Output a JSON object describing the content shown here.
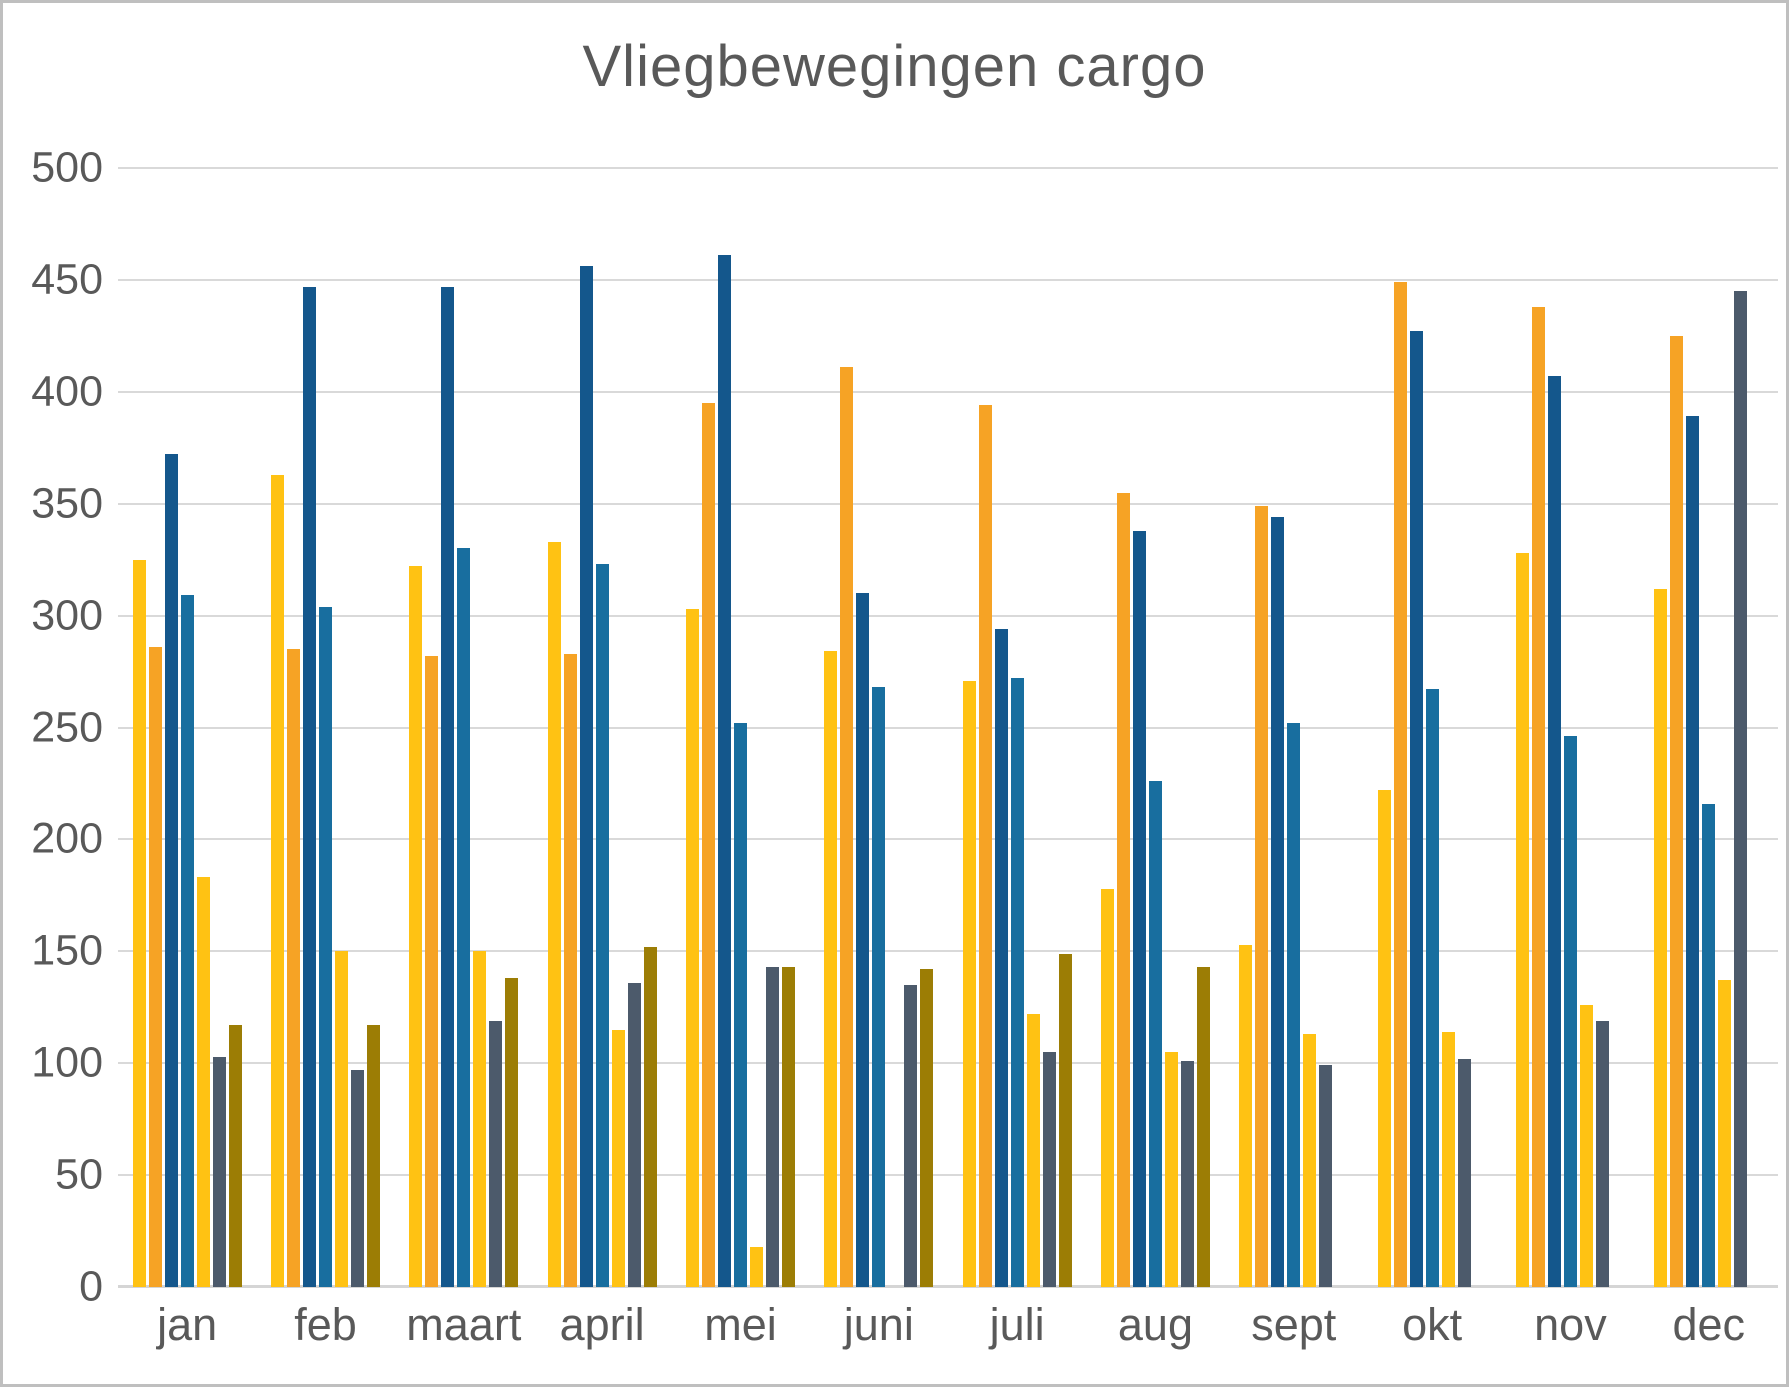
{
  "title": "Vliegbewegingen cargo",
  "theme": {
    "text_color": "#595959",
    "gridline_color": "#d9d9d9",
    "border_color": "#bfbfbf",
    "background": "#ffffff"
  },
  "chart_data": {
    "type": "bar",
    "title": "Vliegbewegingen cargo",
    "categories": [
      "jan",
      "feb",
      "maart",
      "april",
      "mei",
      "juni",
      "juli",
      "aug",
      "sept",
      "okt",
      "nov",
      "dec"
    ],
    "series": [
      {
        "name": "series-1-yellow",
        "color": "#ffc213",
        "values": [
          325,
          363,
          322,
          333,
          303,
          284,
          271,
          178,
          153,
          222,
          328,
          312
        ]
      },
      {
        "name": "series-2-orange",
        "color": "#f6a325",
        "values": [
          286,
          285,
          282,
          283,
          395,
          411,
          394,
          355,
          349,
          449,
          438,
          425
        ]
      },
      {
        "name": "series-3-dark-blue",
        "color": "#14578c",
        "values": [
          372,
          447,
          447,
          456,
          461,
          310,
          294,
          338,
          344,
          427,
          407,
          389
        ]
      },
      {
        "name": "series-4-medium-blue",
        "color": "#186e9f",
        "values": [
          309,
          304,
          330,
          323,
          252,
          268,
          272,
          226,
          252,
          267,
          246,
          216
        ]
      },
      {
        "name": "series-5-yellow",
        "color": "#ffc213",
        "values": [
          183,
          150,
          150,
          115,
          18,
          0,
          122,
          105,
          113,
          114,
          126,
          137
        ]
      },
      {
        "name": "series-6-slate-gray",
        "color": "#4c5a6b",
        "values": [
          103,
          97,
          119,
          136,
          143,
          135,
          105,
          101,
          99,
          102,
          119,
          445
        ]
      },
      {
        "name": "series-7-olive",
        "color": "#9c7d05",
        "values": [
          117,
          117,
          138,
          152,
          143,
          142,
          149,
          143,
          0,
          0,
          0,
          0
        ]
      }
    ],
    "ylim": [
      0,
      500
    ],
    "yticks": [
      0,
      50,
      100,
      150,
      200,
      250,
      300,
      350,
      400,
      450,
      500
    ],
    "grid": true,
    "legend_position": "none"
  }
}
